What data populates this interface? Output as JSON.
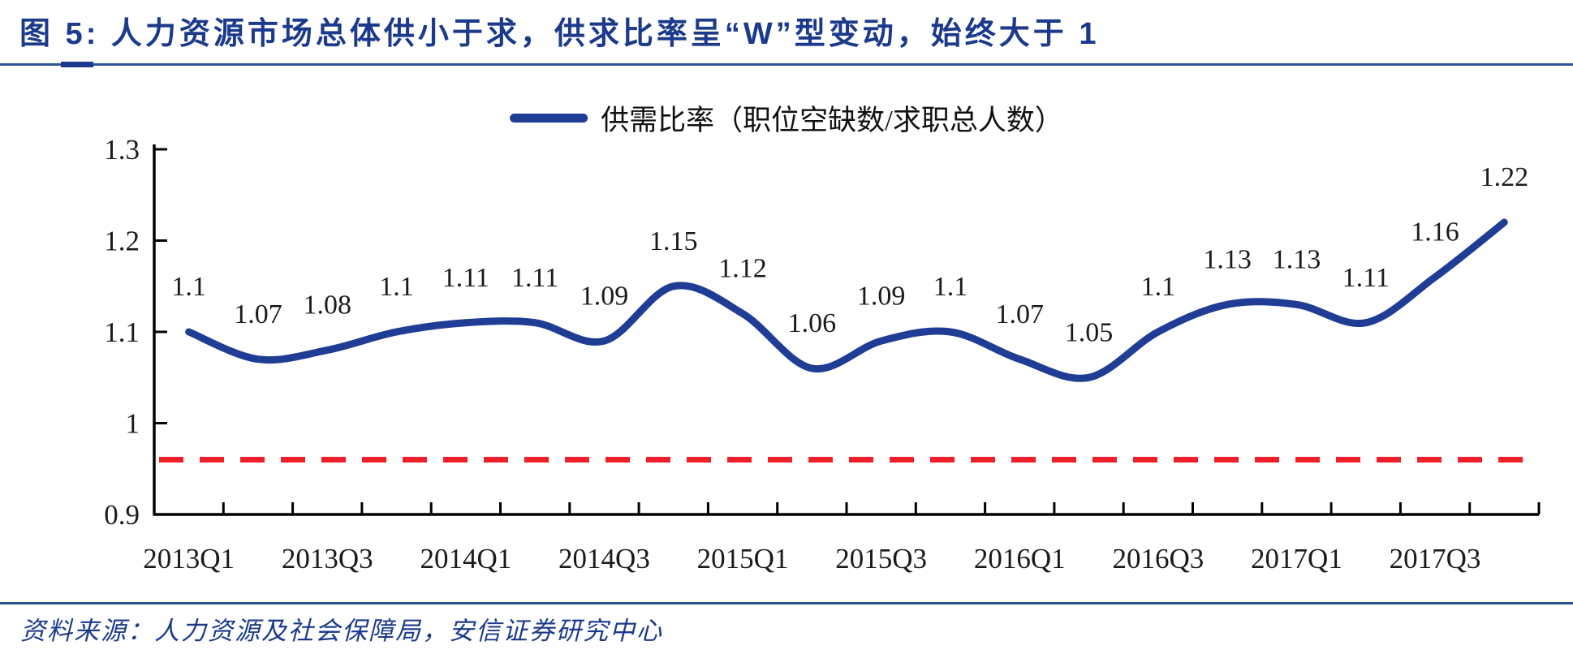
{
  "title": "图 5:  人力资源市场总体供小于求，供求比率呈“W”型变动，始终大于 1",
  "legend": {
    "label": "供需比率（职位空缺数/求职总人数）"
  },
  "source": "资料来源：人力资源及社会保障局，安信证券研究中心",
  "colors": {
    "title_blue": "#1B3A8C",
    "rule_blue": "#2E5395",
    "line_blue": "#1F3D94",
    "reference_red": "#F01E28",
    "axis_black": "#000000",
    "label_black": "#1A1A1A"
  },
  "chart_data": {
    "type": "line",
    "title": "图 5:  人力资源市场总体供小于求，供求比率呈“W”型变动，始终大于 1",
    "series_name": "供需比率（职位空缺数/求职总人数）",
    "x": [
      "2013Q1",
      "2013Q2",
      "2013Q3",
      "2013Q4",
      "2014Q1",
      "2014Q2",
      "2014Q3",
      "2014Q4",
      "2015Q1",
      "2015Q2",
      "2015Q3",
      "2015Q4",
      "2016Q1",
      "2016Q2",
      "2016Q3",
      "2016Q4",
      "2017Q1",
      "2017Q2",
      "2017Q3",
      "2017Q4"
    ],
    "values": [
      1.1,
      1.07,
      1.08,
      1.1,
      1.11,
      1.11,
      1.09,
      1.15,
      1.12,
      1.06,
      1.09,
      1.1,
      1.07,
      1.05,
      1.1,
      1.13,
      1.13,
      1.11,
      1.16,
      1.22
    ],
    "data_labels": [
      "1.1",
      "1.07",
      "1.08",
      "1.1",
      "1.11",
      "1.11",
      "1.09",
      "1.15",
      "1.12",
      "1.06",
      "1.09",
      "1.1",
      "1.07",
      "1.05",
      "1.1",
      "1.13",
      "1.13",
      "1.11",
      "1.16",
      "1.22"
    ],
    "x_tick_labels": [
      "2013Q1",
      "2013Q3",
      "2014Q1",
      "2014Q3",
      "2015Q1",
      "2015Q3",
      "2016Q1",
      "2016Q3",
      "2017Q1",
      "2017Q3"
    ],
    "y_ticks": [
      0.9,
      1,
      1.1,
      1.2,
      1.3
    ],
    "y_tick_labels": [
      "0.9",
      "1",
      "1.1",
      "1.2",
      "1.3"
    ],
    "ylim": [
      0.9,
      1.3
    ],
    "xlabel": "",
    "ylabel": "",
    "grid": false,
    "legend_position": "top-center",
    "reference_line": {
      "value": 0.96,
      "style": "dashed",
      "color": "#F01E28"
    },
    "line_color": "#1F3D94"
  }
}
